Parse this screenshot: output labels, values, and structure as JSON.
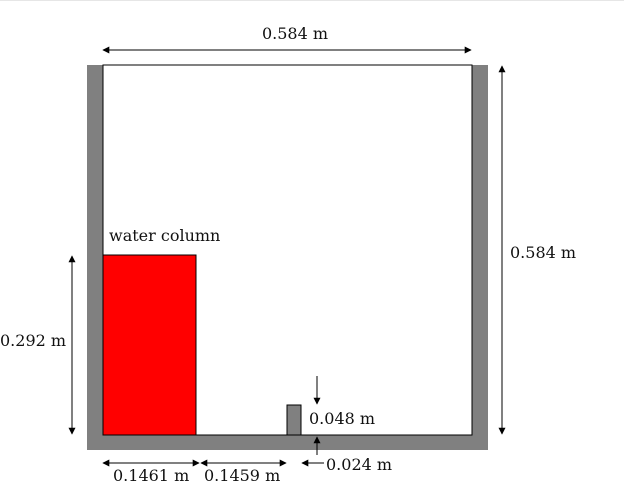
{
  "labels": {
    "top_width": "0.584 m",
    "right_height": "0.584 m",
    "water_column": "water column",
    "water_height": "0.292 m",
    "obstacle_height": "0.048 m",
    "obstacle_width": "0.024 m",
    "water_width": "0.1461 m",
    "gap_to_obstacle": "0.1459 m"
  },
  "colors": {
    "wall": "#808080",
    "water": "#ff0000",
    "line": "#000000"
  }
}
